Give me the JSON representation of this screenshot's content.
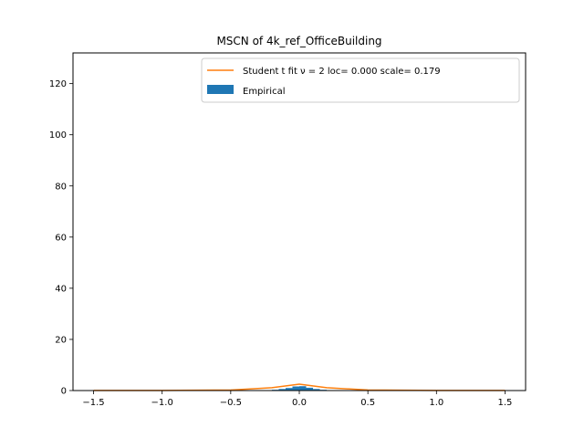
{
  "chart_data": {
    "type": "histogram",
    "title": "MSCN of 4k_ref_OfficeBuilding",
    "xlabel": "",
    "ylabel": "",
    "xlim": [
      -1.65,
      1.65
    ],
    "ylim": [
      0,
      132
    ],
    "x_ticks": [
      -1.5,
      -1.0,
      -0.5,
      0.0,
      0.5,
      1.0,
      1.5
    ],
    "x_tick_labels": [
      "−1.5",
      "−1.0",
      "−0.5",
      "0.0",
      "0.5",
      "1.0",
      "1.5"
    ],
    "y_ticks": [
      0,
      20,
      40,
      60,
      80,
      100,
      120
    ],
    "y_tick_labels": [
      "0",
      "20",
      "40",
      "60",
      "80",
      "100",
      "120"
    ],
    "grid": false,
    "legend_position": "top-right",
    "series": [
      {
        "name": "Student t fit ν = 2 loc= 0.000 scale= 0.179",
        "kind": "line",
        "color": "#ff7f0e",
        "x": [
          -1.5,
          -1.0,
          -0.5,
          -0.2,
          0.0,
          0.2,
          0.5,
          1.0,
          1.5
        ],
        "y": [
          0.03,
          0.06,
          0.22,
          1.1,
          2.5,
          1.1,
          0.22,
          0.06,
          0.03
        ]
      },
      {
        "name": "Empirical",
        "kind": "bar",
        "color": "#1f77b4",
        "bins": [
          -0.2,
          -0.15,
          -0.1,
          -0.05,
          0.0,
          0.05,
          0.1,
          0.15,
          0.2
        ],
        "values": [
          0.3,
          0.6,
          1.0,
          1.6,
          1.7,
          1.1,
          0.6,
          0.3
        ]
      }
    ]
  }
}
